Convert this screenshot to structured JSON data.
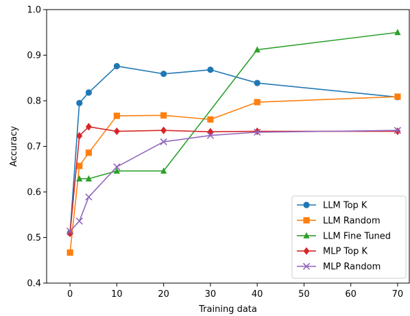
{
  "chart_data": {
    "type": "line",
    "title": "",
    "xlabel": "Training data",
    "ylabel": "Accuracy",
    "xlim": [
      -5,
      72.5
    ],
    "ylim": [
      0.4,
      1.0
    ],
    "xticks": [
      0,
      10,
      20,
      30,
      40,
      50,
      60,
      70
    ],
    "yticks": [
      0.4,
      0.5,
      0.6,
      0.7,
      0.8,
      0.9,
      1.0
    ],
    "xtick_labels": [
      "0",
      "10",
      "20",
      "30",
      "40",
      "50",
      "60",
      "70"
    ],
    "ytick_labels": [
      "0.4",
      "0.5",
      "0.6",
      "0.7",
      "0.8",
      "0.9",
      "1.0"
    ],
    "grid": false,
    "legend_position": "lower-right",
    "series": [
      {
        "name": "LLM Top K",
        "color": "#1f77b4",
        "marker": "circle",
        "x": [
          0,
          2,
          4,
          10,
          20,
          30,
          40,
          70
        ],
        "y": [
          0.51,
          0.795,
          0.818,
          0.876,
          0.859,
          0.868,
          0.839,
          0.808
        ]
      },
      {
        "name": "LLM Random",
        "color": "#ff7f0e",
        "marker": "square",
        "x": [
          0,
          2,
          4,
          10,
          20,
          30,
          40,
          70
        ],
        "y": [
          0.467,
          0.657,
          0.686,
          0.767,
          0.768,
          0.759,
          0.797,
          0.809
        ]
      },
      {
        "name": "LLM Fine Tuned",
        "color": "#2ca02c",
        "marker": "triangle",
        "x": [
          2,
          4,
          10,
          20,
          40,
          70
        ],
        "y": [
          0.629,
          0.629,
          0.646,
          0.646,
          0.912,
          0.95
        ]
      },
      {
        "name": "MLP Top K",
        "color": "#d62728",
        "marker": "diamond",
        "x": [
          0,
          2,
          4,
          10,
          20,
          30,
          40,
          70
        ],
        "y": [
          0.509,
          0.723,
          0.743,
          0.733,
          0.735,
          0.732,
          0.733,
          0.733
        ]
      },
      {
        "name": "MLP Random",
        "color": "#9467bd",
        "marker": "x",
        "x": [
          0,
          2,
          4,
          10,
          20,
          30,
          40,
          70
        ],
        "y": [
          0.514,
          0.536,
          0.589,
          0.655,
          0.71,
          0.724,
          0.731,
          0.735
        ]
      }
    ]
  }
}
